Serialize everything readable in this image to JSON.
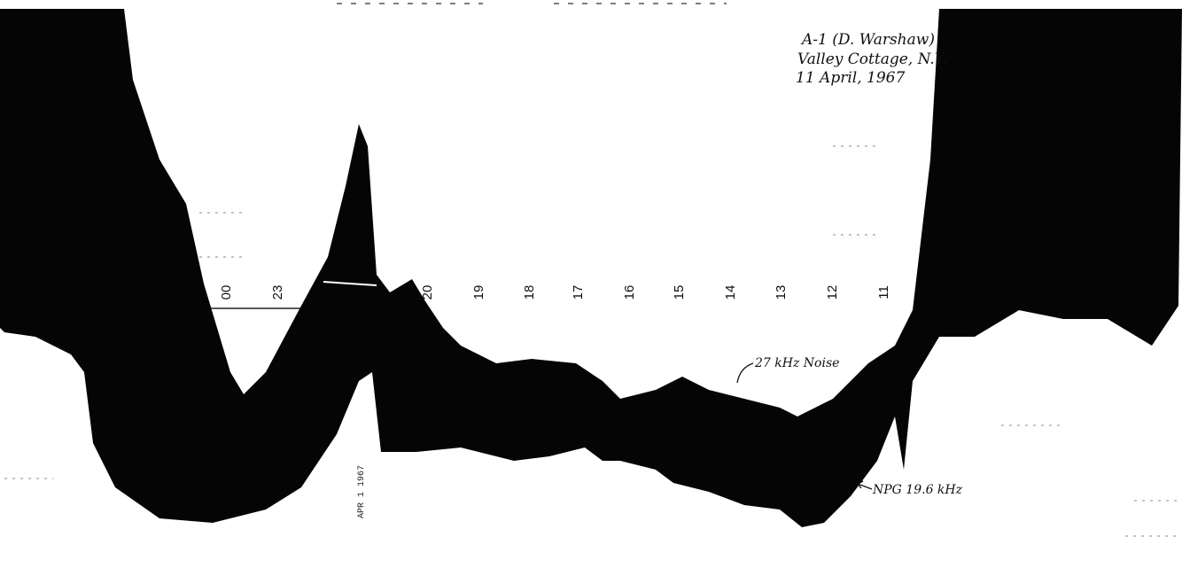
{
  "hour_labels": [
    "00",
    "23",
    "20",
    "19",
    "18",
    "17",
    "16",
    "15",
    "14",
    "13",
    "12",
    "11"
  ],
  "station": {
    "line1": "A-1 (D. Warshaw)",
    "line2": "Valley Cottage, N.Y.",
    "line3": "11 April, 1967"
  },
  "annotations": {
    "noise": "27 kHz Noise",
    "npg": "NPG 19.6 kHz",
    "stamp": "APR 1 1967"
  }
}
